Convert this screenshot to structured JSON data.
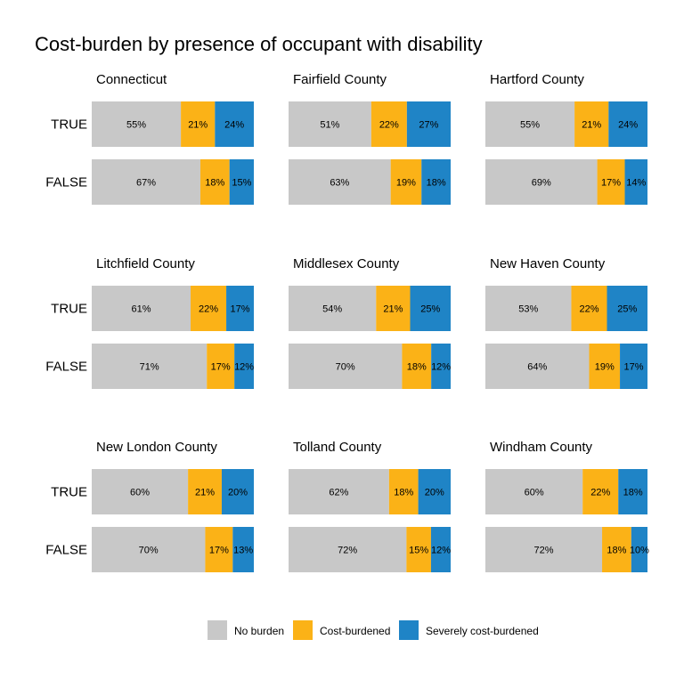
{
  "chart_data": {
    "type": "bar",
    "orientation": "horizontal",
    "stacked": true,
    "title": "Cost-burden by presence of occupant with disability",
    "categories": [
      "TRUE",
      "FALSE"
    ],
    "series_names": [
      "No burden",
      "Cost-burdened",
      "Severely cost-burdened"
    ],
    "colors": [
      "#c8c8c8",
      "#fbb217",
      "#1f84c6"
    ],
    "legend_position": "bottom",
    "grid": false,
    "panels": [
      {
        "name": "Connecticut",
        "values": {
          "TRUE": [
            55,
            21,
            24
          ],
          "FALSE": [
            67,
            18,
            15
          ]
        }
      },
      {
        "name": "Fairfield County",
        "values": {
          "TRUE": [
            51,
            22,
            27
          ],
          "FALSE": [
            63,
            19,
            18
          ]
        }
      },
      {
        "name": "Hartford County",
        "values": {
          "TRUE": [
            55,
            21,
            24
          ],
          "FALSE": [
            69,
            17,
            14
          ]
        }
      },
      {
        "name": "Litchfield County",
        "values": {
          "TRUE": [
            61,
            22,
            17
          ],
          "FALSE": [
            71,
            17,
            12
          ]
        }
      },
      {
        "name": "Middlesex County",
        "values": {
          "TRUE": [
            54,
            21,
            25
          ],
          "FALSE": [
            70,
            18,
            12
          ]
        }
      },
      {
        "name": "New Haven County",
        "values": {
          "TRUE": [
            53,
            22,
            25
          ],
          "FALSE": [
            64,
            19,
            17
          ]
        }
      },
      {
        "name": "New London County",
        "values": {
          "TRUE": [
            60,
            21,
            20
          ],
          "FALSE": [
            70,
            17,
            13
          ]
        }
      },
      {
        "name": "Tolland County",
        "values": {
          "TRUE": [
            62,
            18,
            20
          ],
          "FALSE": [
            72,
            15,
            12
          ]
        }
      },
      {
        "name": "Windham County",
        "values": {
          "TRUE": [
            60,
            22,
            18
          ],
          "FALSE": [
            72,
            18,
            10
          ]
        }
      }
    ]
  }
}
